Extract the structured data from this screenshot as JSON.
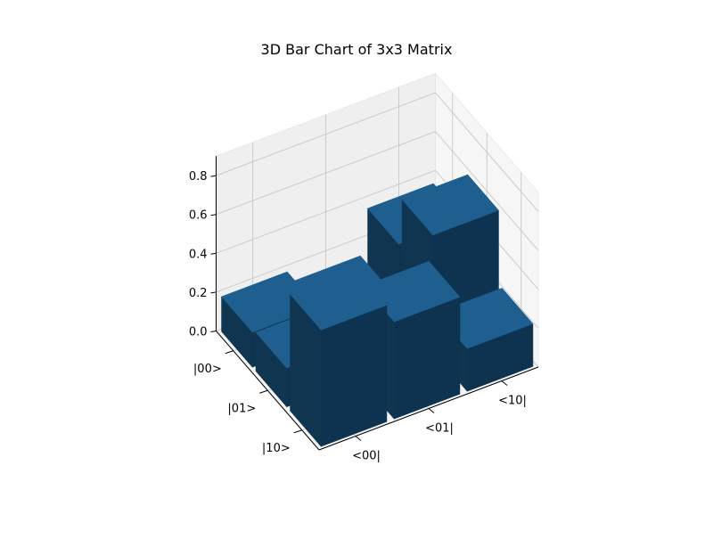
{
  "chart_data": {
    "type": "bar3d",
    "title": "3D Bar Chart of 3x3 Matrix",
    "rows": [
      "|00>",
      "|01>",
      "|10>"
    ],
    "cols": [
      "<00|",
      "<01|",
      "<10|"
    ],
    "values": [
      [
        0.18,
        0.12,
        0.35
      ],
      [
        0.2,
        0.1,
        0.6
      ],
      [
        0.6,
        0.5,
        0.22
      ]
    ],
    "zticks": [
      "0.0",
      "0.2",
      "0.4",
      "0.6",
      "0.8"
    ],
    "zlim": [
      0,
      0.9
    ],
    "bar_color": "#1f5f8f",
    "grid": true
  }
}
